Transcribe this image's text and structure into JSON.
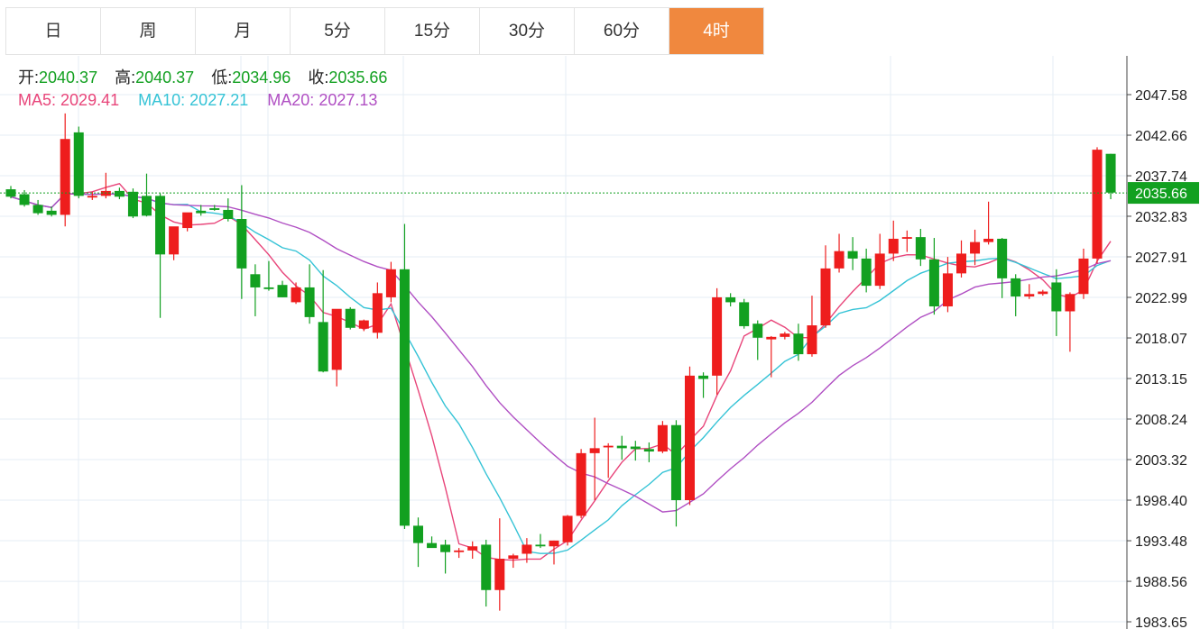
{
  "tabs": [
    "日",
    "周",
    "月",
    "5分",
    "15分",
    "30分",
    "60分",
    "4时"
  ],
  "active_tab": 7,
  "info": {
    "open_label": "开:",
    "open": "2040.37",
    "high_label": "高:",
    "high": "2040.37",
    "low_label": "低:",
    "low": "2034.96",
    "close_label": "收:",
    "close": "2035.66",
    "ma5_label": "MA5:",
    "ma5": "2029.41",
    "ma10_label": "MA10:",
    "ma10": "2027.21",
    "ma20_label": "MA20:",
    "ma20": "2027.13"
  },
  "colors": {
    "up": "#ee1d1d",
    "down": "#12a020",
    "ma5": "#e8457a",
    "ma10": "#35c3d6",
    "ma20": "#b04fc3",
    "grid": "#e6eef4",
    "current": "#12a020",
    "active_tab": "#f0883e"
  },
  "chart_data": {
    "type": "candlestick",
    "current_price": "2035.66",
    "y_ticks": [
      "2047.58",
      "2042.66",
      "2037.74",
      "2032.83",
      "2027.91",
      "2022.99",
      "2018.07",
      "2013.15",
      "2008.24",
      "2003.32",
      "1998.40",
      "1993.48",
      "1988.56",
      "1983.65"
    ],
    "ylim": [
      1983.65,
      2047.58
    ],
    "candles": [
      [
        2036.1,
        2036.5,
        2035.0,
        2035.2
      ],
      [
        2035.5,
        2036.0,
        2034.0,
        2034.2
      ],
      [
        2034.2,
        2034.8,
        2033.0,
        2033.2
      ],
      [
        2033.5,
        2034.0,
        2032.8,
        2033.0
      ],
      [
        2033.0,
        2045.3,
        2031.6,
        2042.2
      ],
      [
        2043.0,
        2043.7,
        2035.0,
        2035.3
      ],
      [
        2035.1,
        2035.8,
        2034.8,
        2035.3
      ],
      [
        2035.3,
        2038.1,
        2035.0,
        2035.9
      ],
      [
        2035.9,
        2036.3,
        2034.9,
        2035.2
      ],
      [
        2035.8,
        2036.2,
        2032.6,
        2032.8
      ],
      [
        2035.3,
        2038.0,
        2032.8,
        2032.9
      ],
      [
        2035.3,
        2035.6,
        2020.5,
        2028.2
      ],
      [
        2028.2,
        2031.4,
        2027.5,
        2031.6
      ],
      [
        2031.4,
        2033.2,
        2031.0,
        2033.3
      ],
      [
        2033.5,
        2034.2,
        2032.9,
        2033.2
      ],
      [
        2033.8,
        2034.2,
        2033.5,
        2033.6
      ],
      [
        2033.6,
        2035.0,
        2032.2,
        2032.5
      ],
      [
        2032.5,
        2036.6,
        2022.8,
        2026.5
      ],
      [
        2025.8,
        2027.0,
        2020.7,
        2024.2
      ],
      [
        2024.2,
        2027.4,
        2023.8,
        2024.0
      ],
      [
        2024.5,
        2025.0,
        2023.0,
        2023.0
      ],
      [
        2022.4,
        2024.8,
        2022.2,
        2024.2
      ],
      [
        2024.2,
        2027.0,
        2019.8,
        2020.6
      ],
      [
        2020.0,
        2026.3,
        2013.9,
        2014.0
      ],
      [
        2014.2,
        2021.4,
        2012.2,
        2021.6
      ],
      [
        2021.6,
        2021.8,
        2019.1,
        2019.3
      ],
      [
        2019.2,
        2020.3,
        2018.9,
        2020.2
      ],
      [
        2018.7,
        2024.8,
        2018.0,
        2023.5
      ],
      [
        2023.0,
        2027.3,
        2022.4,
        2026.4
      ],
      [
        2026.4,
        2031.9,
        1994.9,
        1995.3
      ],
      [
        1995.3,
        1996.3,
        1990.3,
        1993.2
      ],
      [
        1993.2,
        1994.0,
        1992.8,
        1992.6
      ],
      [
        1993.0,
        1993.6,
        1989.5,
        1992.1
      ],
      [
        1992.1,
        1992.6,
        1991.4,
        1992.3
      ],
      [
        1992.3,
        1993.4,
        1991.3,
        1992.8
      ],
      [
        1993.0,
        1993.6,
        1985.5,
        1987.5
      ],
      [
        1987.5,
        1996.2,
        1985.0,
        1991.3
      ],
      [
        1991.3,
        1991.9,
        1990.2,
        1991.7
      ],
      [
        1991.9,
        1993.8,
        1990.8,
        1993.0
      ],
      [
        1993.0,
        1994.3,
        1992.6,
        1992.8
      ],
      [
        1992.8,
        1993.5,
        1990.6,
        1993.5
      ],
      [
        1993.3,
        1996.6,
        1992.9,
        1996.5
      ],
      [
        1996.5,
        2004.6,
        1996.2,
        2004.1
      ],
      [
        2004.1,
        2008.4,
        1998.4,
        2004.7
      ],
      [
        2004.8,
        2005.3,
        2001.1,
        2005.0
      ],
      [
        2005.0,
        2006.2,
        2003.3,
        2004.7
      ],
      [
        2004.9,
        2005.6,
        2003.2,
        2004.6
      ],
      [
        2004.6,
        2005.4,
        2003.0,
        2004.3
      ],
      [
        2004.3,
        2008.0,
        2004.1,
        2007.5
      ],
      [
        2007.5,
        2008.1,
        1995.2,
        1998.4
      ],
      [
        1998.4,
        2014.6,
        1997.8,
        2013.5
      ],
      [
        2013.5,
        2013.9,
        2010.8,
        2013.1
      ],
      [
        2013.5,
        2024.1,
        2011.2,
        2023.0
      ],
      [
        2023.0,
        2023.5,
        2021.9,
        2022.4
      ],
      [
        2022.4,
        2022.8,
        2019.2,
        2019.5
      ],
      [
        2019.8,
        2020.2,
        2015.4,
        2018.1
      ],
      [
        2017.9,
        2018.3,
        2013.3,
        2018.2
      ],
      [
        2018.2,
        2018.8,
        2017.9,
        2018.6
      ],
      [
        2018.6,
        2019.8,
        2015.3,
        2016.1
      ],
      [
        2016.1,
        2023.2,
        2015.8,
        2019.6
      ],
      [
        2019.6,
        2029.3,
        2019.3,
        2026.5
      ],
      [
        2026.5,
        2030.7,
        2026.0,
        2028.6
      ],
      [
        2028.6,
        2030.3,
        2026.3,
        2027.7
      ],
      [
        2027.7,
        2028.9,
        2023.6,
        2024.4
      ],
      [
        2024.4,
        2030.7,
        2024.0,
        2028.3
      ],
      [
        2028.3,
        2032.3,
        2027.4,
        2030.1
      ],
      [
        2030.1,
        2031.1,
        2028.5,
        2030.3
      ],
      [
        2030.3,
        2031.3,
        2026.8,
        2027.6
      ],
      [
        2027.6,
        2030.2,
        2020.9,
        2021.9
      ],
      [
        2021.9,
        2027.9,
        2021.2,
        2025.9
      ],
      [
        2025.9,
        2029.9,
        2025.4,
        2028.3
      ],
      [
        2028.3,
        2031.2,
        2026.9,
        2029.7
      ],
      [
        2029.7,
        2034.6,
        2029.4,
        2030.1
      ],
      [
        2030.1,
        2030.2,
        2022.9,
        2025.3
      ],
      [
        2025.3,
        2025.8,
        2020.7,
        2023.1
      ],
      [
        2023.1,
        2024.6,
        2022.8,
        2023.4
      ],
      [
        2023.4,
        2023.9,
        2023.2,
        2023.7
      ],
      [
        2024.8,
        2026.4,
        2018.3,
        2021.3
      ],
      [
        2021.3,
        2023.6,
        2016.4,
        2023.4
      ],
      [
        2023.4,
        2028.9,
        2022.8,
        2027.7
      ],
      [
        2027.7,
        2041.2,
        2027.1,
        2040.9
      ],
      [
        2040.4,
        2040.4,
        2034.9,
        2035.7
      ]
    ]
  }
}
